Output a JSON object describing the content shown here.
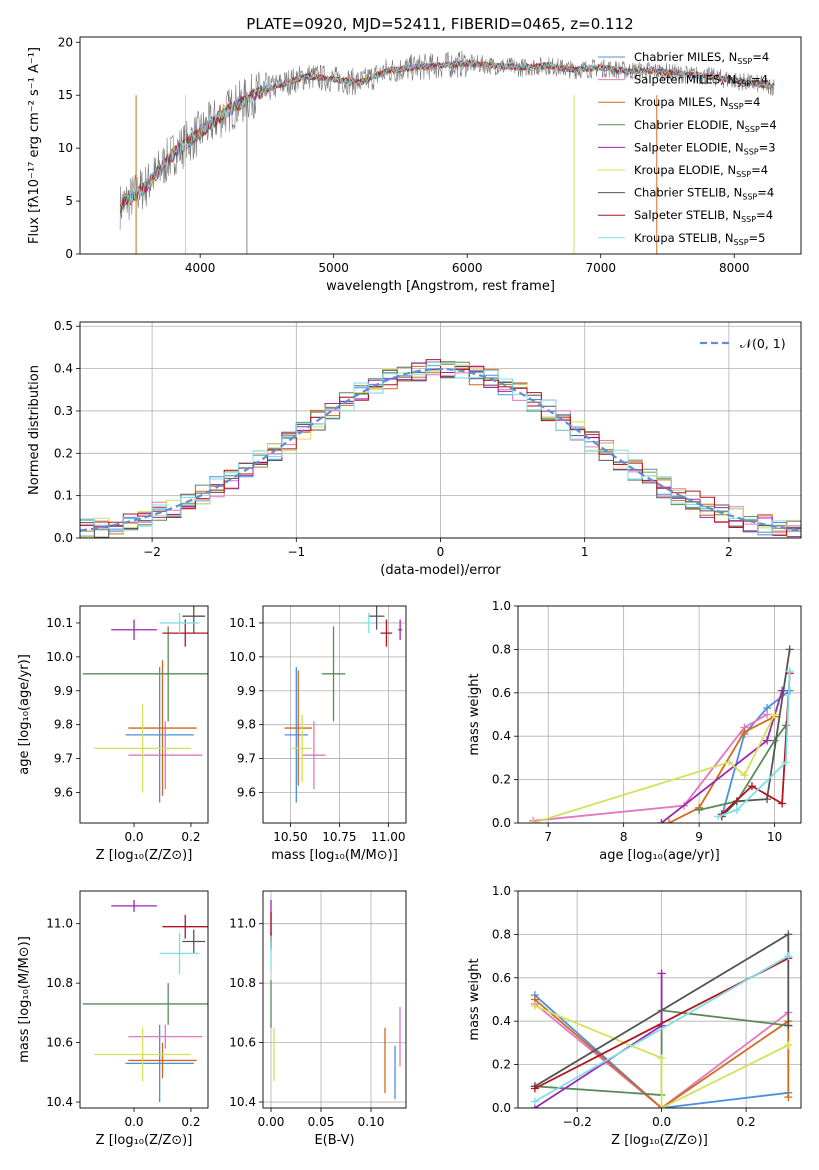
{
  "figure_title": "PLATE=0920, MJD=52411, FIBERID=0465, z=0.112",
  "colors": {
    "Chabrier MILES": "#4a90e2",
    "Salpeter MILES": "#e377c2",
    "Kroupa MILES": "#d2691e",
    "Chabrier ELODIE": "#5a8a5a",
    "Salpeter ELODIE": "#9c27b0",
    "Kroupa ELODIE": "#d4e157",
    "Chabrier STELIB": "#555555",
    "Salpeter STELIB": "#b0171f",
    "Kroupa STELIB": "#80deea"
  },
  "chart_data": [
    {
      "id": "spectrum",
      "type": "line",
      "title": "PLATE=0920, MJD=52411, FIBERID=0465, z=0.112",
      "xlabel": "wavelength [Angstrom, rest frame]",
      "ylabel": "Flux [fλ10⁻¹⁷ erg cm⁻² s⁻¹ A⁻¹]",
      "xlim": [
        3100,
        8500
      ],
      "ylim": [
        0,
        20.5
      ],
      "xticks": [
        4000,
        5000,
        6000,
        7000,
        8000
      ],
      "yticks": [
        0,
        5,
        10,
        15,
        20
      ],
      "grid": false,
      "legend_position": "right",
      "x": [
        3400,
        3600,
        3800,
        4000,
        4200,
        4400,
        4600,
        4800,
        5000,
        5200,
        5400,
        5600,
        5800,
        6000,
        6200,
        6400,
        6600,
        6800,
        7000,
        7200,
        7400,
        7600,
        7800,
        8000,
        8200,
        8300
      ],
      "y": [
        4.5,
        6.5,
        9.5,
        11.5,
        13.5,
        15.0,
        16.0,
        16.8,
        16.5,
        16.2,
        17.3,
        17.6,
        17.8,
        18.0,
        17.8,
        17.6,
        17.8,
        17.4,
        17.6,
        17.3,
        17.3,
        17.0,
        16.8,
        16.4,
        16.0,
        15.8
      ],
      "series": [
        {
          "name": "Chabrier MILES",
          "nssp": "4"
        },
        {
          "name": "Salpeter MILES",
          "nssp": "4"
        },
        {
          "name": "Kroupa MILES",
          "nssp": "4"
        },
        {
          "name": "Chabrier ELODIE",
          "nssp": "4"
        },
        {
          "name": "Salpeter ELODIE",
          "nssp": "3"
        },
        {
          "name": "Kroupa ELODIE",
          "nssp": "4"
        },
        {
          "name": "Chabrier STELIB",
          "nssp": "4"
        },
        {
          "name": "Salpeter STELIB",
          "nssp": "4"
        },
        {
          "name": "Kroupa STELIB",
          "nssp": "5"
        }
      ]
    },
    {
      "id": "residuals",
      "type": "histogram",
      "xlabel": "(data-model)/error",
      "ylabel": "Normed distribution",
      "xlim": [
        -2.5,
        2.5
      ],
      "ylim": [
        0,
        0.51
      ],
      "xticks": [
        -2,
        -1,
        0,
        1,
        2
      ],
      "yticks": [
        0.0,
        0.1,
        0.2,
        0.3,
        0.4,
        0.5
      ],
      "grid": true,
      "legend_position": "top-right",
      "legend": "𝒩(0, 1)",
      "bin_width": 0.1,
      "reference_curve": "normal(0,1)"
    },
    {
      "id": "age-vs-Z",
      "type": "errorbar",
      "xlabel": "Z [log₁₀(Z/Z⊙)]",
      "ylabel": "age  [log₁₀(age/yr)]",
      "xlim": [
        -0.19,
        0.26
      ],
      "ylim": [
        9.51,
        10.15
      ],
      "xticks": [
        0.0,
        0.2
      ],
      "yticks": [
        9.6,
        9.7,
        9.8,
        9.9,
        10.0,
        10.1
      ],
      "grid": false,
      "points": [
        {
          "series": "Chabrier MILES",
          "x": 0.09,
          "xerr": 0.12,
          "y": 9.77,
          "yerr": 0.2
        },
        {
          "series": "Salpeter MILES",
          "x": 0.11,
          "xerr": 0.13,
          "y": 9.71,
          "yerr": 0.1
        },
        {
          "series": "Kroupa MILES",
          "x": 0.1,
          "xerr": 0.12,
          "y": 9.79,
          "yerr": 0.2
        },
        {
          "series": "Chabrier ELODIE",
          "x": 0.12,
          "xerr": 0.3,
          "y": 9.95,
          "yerr": 0.14
        },
        {
          "series": "Salpeter ELODIE",
          "x": 0.0,
          "xerr": 0.08,
          "y": 10.08,
          "yerr": 0.03
        },
        {
          "series": "Kroupa ELODIE",
          "x": 0.03,
          "xerr": 0.17,
          "y": 9.73,
          "yerr": 0.13
        },
        {
          "series": "Chabrier STELIB",
          "x": 0.21,
          "xerr": 0.04,
          "y": 10.12,
          "yerr": 0.05
        },
        {
          "series": "Salpeter STELIB",
          "x": 0.18,
          "xerr": 0.08,
          "y": 10.07,
          "yerr": 0.04
        },
        {
          "series": "Kroupa STELIB",
          "x": 0.16,
          "xerr": 0.07,
          "y": 10.1,
          "yerr": 0.03
        }
      ]
    },
    {
      "id": "age-vs-mass",
      "type": "errorbar",
      "xlabel": "mass [log₁₀(M/M⊙)]",
      "ylabel": "",
      "xlim": [
        10.36,
        11.09
      ],
      "ylim": [
        9.51,
        10.15
      ],
      "xticks": [
        10.5,
        10.75,
        11.0
      ],
      "yticks": [
        9.6,
        9.7,
        9.8,
        9.9,
        10.0,
        10.1
      ],
      "grid": true,
      "points": [
        {
          "series": "Chabrier MILES",
          "x": 10.53,
          "xerr": 0.06,
          "y": 9.77,
          "yerr": 0.2
        },
        {
          "series": "Salpeter MILES",
          "x": 10.62,
          "xerr": 0.06,
          "y": 9.71,
          "yerr": 0.1
        },
        {
          "series": "Kroupa MILES",
          "x": 10.54,
          "xerr": 0.07,
          "y": 9.79,
          "yerr": 0.17
        },
        {
          "series": "Chabrier ELODIE",
          "x": 10.72,
          "xerr": 0.06,
          "y": 9.95,
          "yerr": 0.14
        },
        {
          "series": "Salpeter ELODIE",
          "x": 11.06,
          "xerr": 0.01,
          "y": 10.08,
          "yerr": 0.03
        },
        {
          "series": "Kroupa ELODIE",
          "x": 10.56,
          "xerr": 0.05,
          "y": 9.73,
          "yerr": 0.1
        },
        {
          "series": "Chabrier STELIB",
          "x": 10.94,
          "xerr": 0.04,
          "y": 10.12,
          "yerr": 0.04
        },
        {
          "series": "Salpeter STELIB",
          "x": 10.99,
          "xerr": 0.03,
          "y": 10.07,
          "yerr": 0.04
        },
        {
          "series": "Kroupa STELIB",
          "x": 10.9,
          "xerr": 0.03,
          "y": 10.1,
          "yerr": 0.03
        }
      ]
    },
    {
      "id": "weight-vs-age",
      "type": "line",
      "xlabel": "age  [log₁₀(age/yr)]",
      "ylabel": "mass weight",
      "xlim": [
        6.6,
        10.35
      ],
      "ylim": [
        0,
        1.0
      ],
      "xticks": [
        7,
        8,
        9,
        10
      ],
      "yticks": [
        0.0,
        0.2,
        0.4,
        0.6,
        0.8,
        1.0
      ],
      "grid": true,
      "series": [
        {
          "name": "Chabrier MILES",
          "x": [
            9.3,
            9.6,
            9.9,
            10.2
          ],
          "y": [
            0.03,
            0.41,
            0.53,
            0.61
          ]
        },
        {
          "name": "Salpeter MILES",
          "x": [
            6.8,
            8.8,
            9.6,
            9.9
          ],
          "y": [
            0.01,
            0.08,
            0.44,
            0.5
          ]
        },
        {
          "name": "Kroupa MILES",
          "x": [
            8.6,
            9.0,
            9.6,
            10.0
          ],
          "y": [
            0.0,
            0.07,
            0.42,
            0.49
          ]
        },
        {
          "name": "Chabrier ELODIE",
          "x": [
            9.0,
            9.5,
            10.0,
            10.15
          ],
          "y": [
            0.06,
            0.1,
            0.38,
            0.45
          ]
        },
        {
          "name": "Salpeter ELODIE",
          "x": [
            8.5,
            9.9,
            10.1
          ],
          "y": [
            0.0,
            0.38,
            0.61
          ]
        },
        {
          "name": "Kroupa ELODIE",
          "x": [
            6.8,
            9.4,
            9.6,
            10.0
          ],
          "y": [
            0.0,
            0.28,
            0.22,
            0.5
          ]
        },
        {
          "name": "Chabrier STELIB",
          "x": [
            9.3,
            9.5,
            9.9,
            10.2
          ],
          "y": [
            0.03,
            0.1,
            0.11,
            0.8
          ]
        },
        {
          "name": "Salpeter STELIB",
          "x": [
            9.3,
            9.7,
            10.1,
            10.2
          ],
          "y": [
            0.04,
            0.17,
            0.09,
            0.69
          ]
        },
        {
          "name": "Kroupa STELIB",
          "x": [
            9.25,
            9.5,
            10.15,
            10.2
          ],
          "y": [
            0.03,
            0.06,
            0.28,
            0.7
          ]
        }
      ]
    },
    {
      "id": "mass-vs-Z",
      "type": "errorbar",
      "xlabel": "Z [log₁₀(Z/Z⊙)]",
      "ylabel": "mass [log₁₀(M/M⊙)]",
      "xlim": [
        -0.19,
        0.26
      ],
      "ylim": [
        10.38,
        11.11
      ],
      "xticks": [
        0.0,
        0.2
      ],
      "yticks": [
        10.4,
        10.6,
        10.8,
        11.0
      ],
      "grid": false,
      "points": [
        {
          "series": "Chabrier MILES",
          "x": 0.09,
          "xerr": 0.12,
          "y": 10.53,
          "yerr": 0.13
        },
        {
          "series": "Salpeter MILES",
          "x": 0.11,
          "xerr": 0.13,
          "y": 10.62,
          "yerr": 0.04
        },
        {
          "series": "Kroupa MILES",
          "x": 0.1,
          "xerr": 0.12,
          "y": 10.54,
          "yerr": 0.06
        },
        {
          "series": "Chabrier ELODIE",
          "x": 0.12,
          "xerr": 0.3,
          "y": 10.73,
          "yerr": 0.07
        },
        {
          "series": "Salpeter ELODIE",
          "x": 0.0,
          "xerr": 0.08,
          "y": 11.06,
          "yerr": 0.02
        },
        {
          "series": "Kroupa ELODIE",
          "x": 0.03,
          "xerr": 0.17,
          "y": 10.56,
          "yerr": 0.09
        },
        {
          "series": "Chabrier STELIB",
          "x": 0.21,
          "xerr": 0.04,
          "y": 10.94,
          "yerr": 0.04
        },
        {
          "series": "Salpeter STELIB",
          "x": 0.18,
          "xerr": 0.08,
          "y": 10.99,
          "yerr": 0.04
        },
        {
          "series": "Kroupa STELIB",
          "x": 0.16,
          "xerr": 0.07,
          "y": 10.9,
          "yerr": 0.07
        }
      ]
    },
    {
      "id": "mass-vs-EBV",
      "type": "errorbar",
      "xlabel": "E(B-V)",
      "ylabel": "",
      "xlim": [
        -0.008,
        0.135
      ],
      "ylim": [
        10.38,
        11.11
      ],
      "xticks": [
        0.0,
        0.05,
        0.1
      ],
      "yticks": [
        10.4,
        10.6,
        10.8,
        11.0
      ],
      "grid": true,
      "points": [
        {
          "series": "Chabrier MILES",
          "x": 0.124,
          "xerr": 0,
          "y": 10.5,
          "yerr": 0.09
        },
        {
          "series": "Salpeter MILES",
          "x": 0.129,
          "xerr": 0,
          "y": 10.62,
          "yerr": 0.1
        },
        {
          "series": "Kroupa MILES",
          "x": 0.114,
          "xerr": 0,
          "y": 10.54,
          "yerr": 0.11
        },
        {
          "series": "Chabrier ELODIE",
          "x": 0.0,
          "xerr": 0,
          "y": 10.73,
          "yerr": 0.08
        },
        {
          "series": "Salpeter ELODIE",
          "x": 0.0,
          "xerr": 0,
          "y": 11.0,
          "yerr": 0.08
        },
        {
          "series": "Kroupa ELODIE",
          "x": 0.003,
          "xerr": 0,
          "y": 10.56,
          "yerr": 0.09
        },
        {
          "series": "Chabrier STELIB",
          "x": 0.0,
          "xerr": 0,
          "y": 10.94,
          "yerr": 0.03
        },
        {
          "series": "Salpeter STELIB",
          "x": 0.0,
          "xerr": 0,
          "y": 10.99,
          "yerr": 0.05
        },
        {
          "series": "Kroupa STELIB",
          "x": 0.0,
          "xerr": 0,
          "y": 10.9,
          "yerr": 0.06
        }
      ]
    },
    {
      "id": "weight-vs-Z",
      "type": "line",
      "xlabel": "Z [log₁₀(Z/Z⊙)]",
      "ylabel": "mass weight",
      "xlim": [
        -0.34,
        0.33
      ],
      "ylim": [
        0,
        1.0
      ],
      "xticks": [
        -0.2,
        0.0,
        0.2
      ],
      "yticks": [
        0.0,
        0.2,
        0.4,
        0.6,
        0.8,
        1.0
      ],
      "grid": true,
      "series": [
        {
          "name": "Chabrier MILES",
          "x": [
            -0.3,
            0.0,
            0.3
          ],
          "y": [
            0.52,
            0.0,
            0.07
          ]
        },
        {
          "name": "Salpeter MILES",
          "x": [
            -0.3,
            0.0,
            0.3
          ],
          "y": [
            0.48,
            0.0,
            0.44
          ]
        },
        {
          "name": "Kroupa MILES",
          "x": [
            -0.3,
            0.0,
            0.3,
            0.3
          ],
          "y": [
            0.5,
            0.0,
            0.4,
            0.05
          ]
        },
        {
          "name": "Chabrier ELODIE",
          "x": [
            -0.3,
            0.0,
            0.0,
            0.3
          ],
          "y": [
            0.1,
            0.06,
            0.45,
            0.38
          ]
        },
        {
          "name": "Salpeter ELODIE",
          "x": [
            -0.3,
            0.0,
            0.0
          ],
          "y": [
            0.0,
            0.38,
            0.62
          ]
        },
        {
          "name": "Kroupa ELODIE",
          "x": [
            -0.3,
            0.0,
            0.0,
            0.3
          ],
          "y": [
            0.47,
            0.23,
            0.0,
            0.29
          ]
        },
        {
          "name": "Chabrier STELIB",
          "x": [
            -0.3,
            0.3,
            0.3
          ],
          "y": [
            0.1,
            0.8,
            0.38
          ]
        },
        {
          "name": "Salpeter STELIB",
          "x": [
            -0.3,
            0.3
          ],
          "y": [
            0.09,
            0.69
          ]
        },
        {
          "name": "Kroupa STELIB",
          "x": [
            -0.3,
            0.3
          ],
          "y": [
            0.03,
            0.7
          ]
        }
      ]
    }
  ]
}
